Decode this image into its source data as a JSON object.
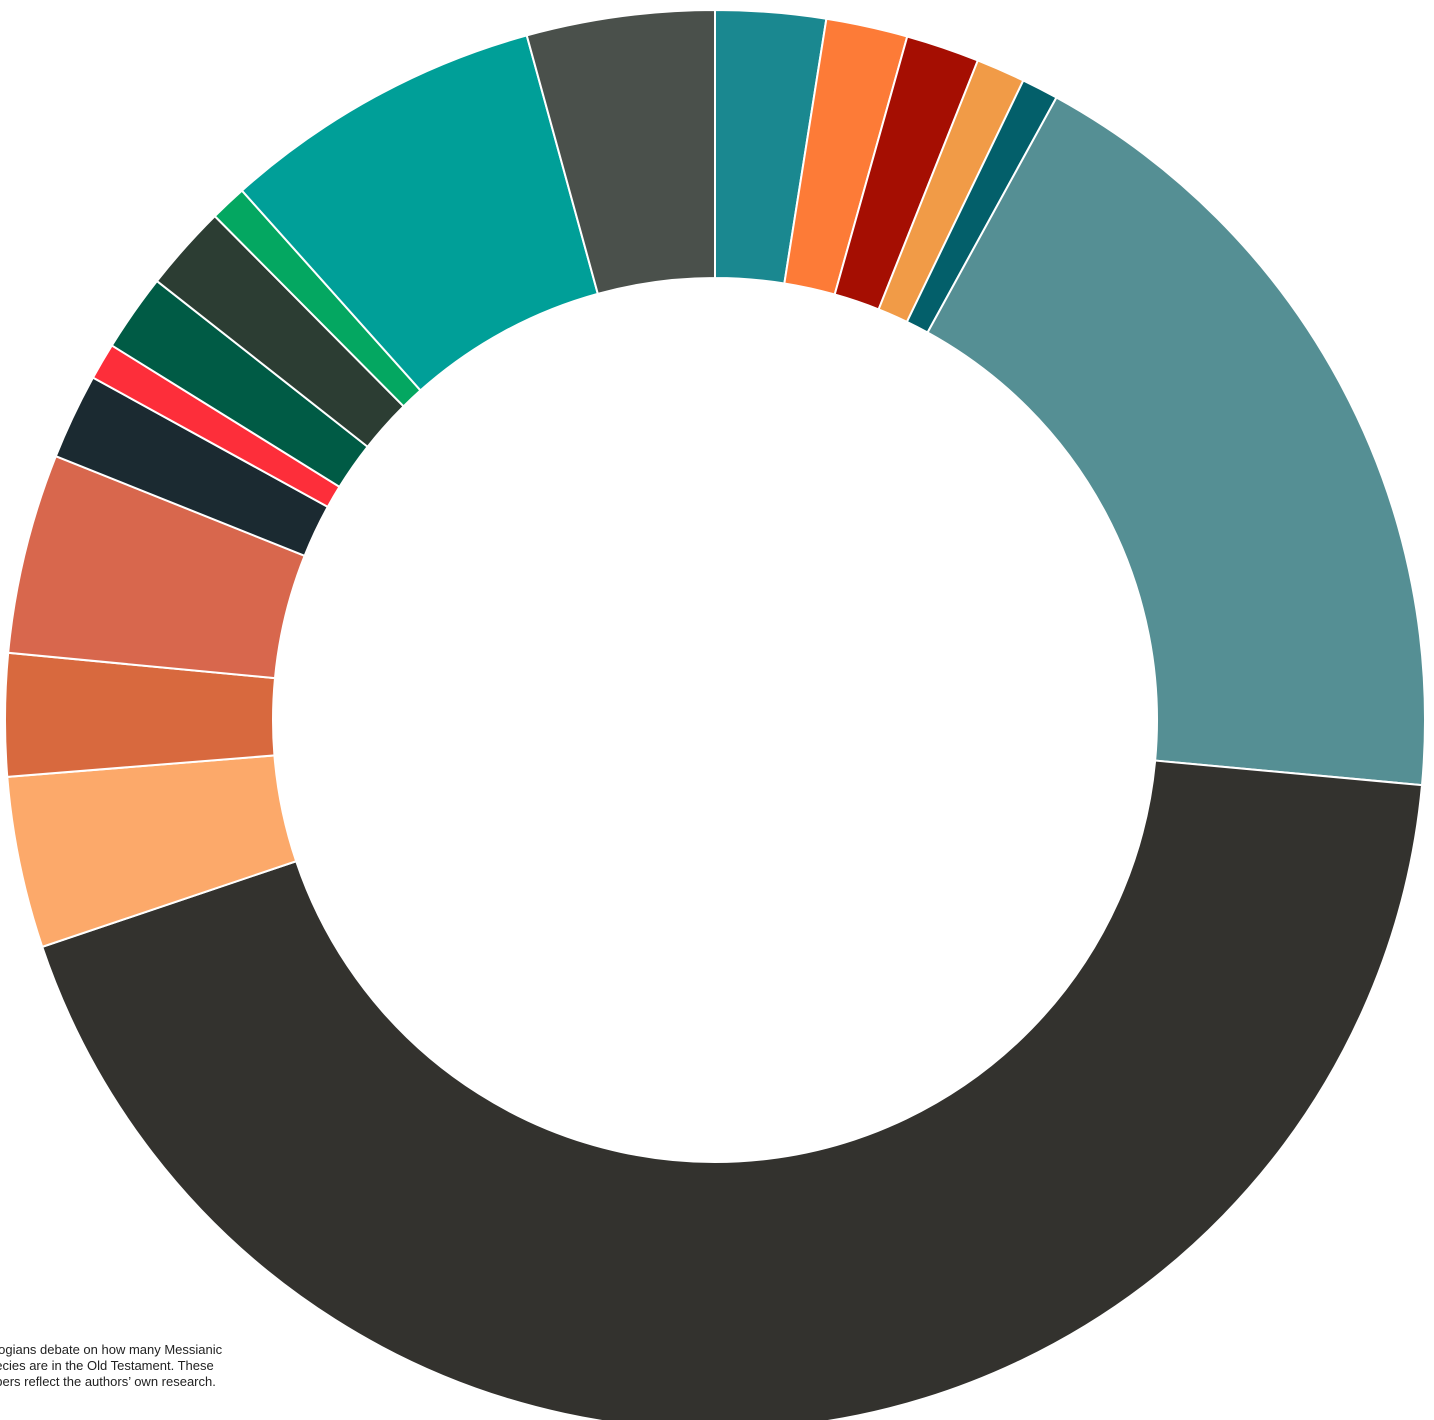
{
  "footnote": {
    "lines": [
      "ologians debate on how many Messianic",
      "hecies are in the Old Testament. These",
      "nbers reflect the authors’ own research."
    ]
  },
  "chart_data": {
    "type": "pie",
    "donut": true,
    "start_angle_deg": 0,
    "direction": "clockwise",
    "slice_stroke_color": "#ffffff",
    "slices": [
      {
        "value": 2.7,
        "color": "#1a8890"
      },
      {
        "value": 2.0,
        "color": "#fd7b37"
      },
      {
        "value": 1.8,
        "color": "#a50e02"
      },
      {
        "value": 1.2,
        "color": "#f19b47"
      },
      {
        "value": 0.9,
        "color": "#035f6a"
      },
      {
        "value": 19.9,
        "color": "#558f94"
      },
      {
        "value": 46.7,
        "color": "#33322e"
      },
      {
        "value": 4.2,
        "color": "#fca96a"
      },
      {
        "value": 3.0,
        "color": "#d8693e"
      },
      {
        "value": 4.9,
        "color": "#d8674d"
      },
      {
        "value": 2.1,
        "color": "#1b2a31"
      },
      {
        "value": 0.9,
        "color": "#fd2e3a"
      },
      {
        "value": 1.9,
        "color": "#005b45"
      },
      {
        "value": 2.1,
        "color": "#2c3d33"
      },
      {
        "value": 0.9,
        "color": "#04a761"
      },
      {
        "value": 7.9,
        "color": "#009f98"
      },
      {
        "value": 4.6,
        "color": "#4a504b"
      }
    ]
  }
}
